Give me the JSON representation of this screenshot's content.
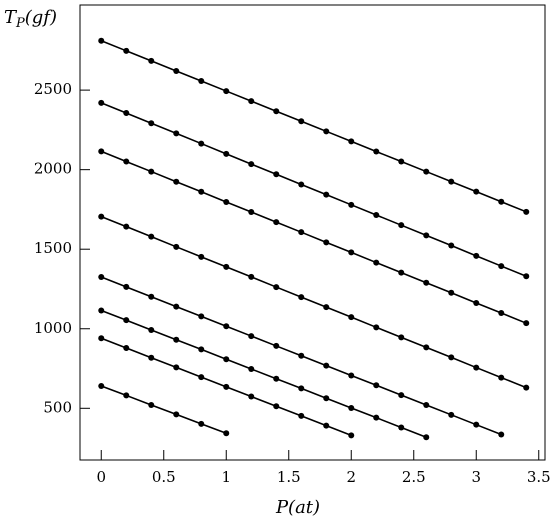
{
  "chart_data": {
    "type": "line",
    "x_label": "P(at)",
    "y_label": {
      "main": "T",
      "sub": "P",
      "rest": "(gf)"
    },
    "xlim": [
      -0.17,
      3.55
    ],
    "ylim": [
      175,
      3035
    ],
    "xticks": [
      0,
      0.5,
      1,
      1.5,
      2,
      2.5,
      3,
      3.5
    ],
    "yticks": [
      500,
      1000,
      1500,
      2000,
      2500
    ],
    "color": "#000000",
    "series": [
      {
        "x": [
          0,
          0.2,
          0.4,
          0.6,
          0.8,
          1,
          1.2,
          1.4,
          1.6,
          1.8,
          2,
          2.2,
          2.4,
          2.6,
          2.8,
          3,
          3.2,
          3.4
        ],
        "values": [
          2810,
          2747,
          2684,
          2620,
          2557,
          2494,
          2431,
          2367,
          2304,
          2241,
          2178,
          2114,
          2051,
          1988,
          1925,
          1862,
          1798,
          1735
        ]
      },
      {
        "x": [
          0,
          0.2,
          0.4,
          0.6,
          0.8,
          1,
          1.2,
          1.4,
          1.6,
          1.8,
          2,
          2.2,
          2.4,
          2.6,
          2.8,
          3,
          3.2,
          3.4
        ],
        "values": [
          2420,
          2356,
          2292,
          2228,
          2164,
          2099,
          2035,
          1971,
          1907,
          1843,
          1779,
          1715,
          1651,
          1587,
          1523,
          1458,
          1394,
          1330
        ]
      },
      {
        "x": [
          0,
          0.2,
          0.4,
          0.6,
          0.8,
          1,
          1.2,
          1.4,
          1.6,
          1.8,
          2,
          2.2,
          2.4,
          2.6,
          2.8,
          3,
          3.2,
          3.4
        ],
        "values": [
          2115,
          2051,
          1988,
          1924,
          1861,
          1797,
          1734,
          1670,
          1607,
          1543,
          1480,
          1416,
          1353,
          1289,
          1226,
          1162,
          1099,
          1035
        ]
      },
      {
        "x": [
          0,
          0.2,
          0.4,
          0.6,
          0.8,
          1,
          1.2,
          1.4,
          1.6,
          1.8,
          2,
          2.2,
          2.4,
          2.6,
          2.8,
          3,
          3.2,
          3.4
        ],
        "values": [
          1705,
          1642,
          1579,
          1515,
          1452,
          1389,
          1326,
          1262,
          1199,
          1136,
          1073,
          1009,
          946,
          883,
          820,
          756,
          693,
          630
        ]
      },
      {
        "x": [
          0,
          0.2,
          0.4,
          0.6,
          0.8,
          1,
          1.2,
          1.4,
          1.6,
          1.8,
          2,
          2.2,
          2.4,
          2.6,
          2.8,
          3,
          3.2
        ],
        "values": [
          1325,
          1263,
          1201,
          1139,
          1078,
          1016,
          954,
          892,
          830,
          768,
          706,
          645,
          583,
          521,
          459,
          397,
          335
        ]
      },
      {
        "x": [
          0,
          0.2,
          0.4,
          0.6,
          0.8,
          1,
          1.2,
          1.4,
          1.6,
          1.8,
          2,
          2.2,
          2.4,
          2.6
        ],
        "values": [
          1115,
          1054,
          992,
          931,
          870,
          808,
          747,
          686,
          625,
          563,
          502,
          441,
          379,
          318
        ]
      },
      {
        "x": [
          0,
          0.2,
          0.4,
          0.6,
          0.8,
          1,
          1.2,
          1.4,
          1.6,
          1.8,
          2
        ],
        "values": [
          940,
          879,
          818,
          757,
          696,
          635,
          574,
          513,
          452,
          391,
          330
        ]
      },
      {
        "x": [
          0,
          0.2,
          0.4,
          0.6,
          0.8,
          1
        ],
        "values": [
          640,
          581,
          521,
          462,
          402,
          343
        ]
      }
    ]
  }
}
